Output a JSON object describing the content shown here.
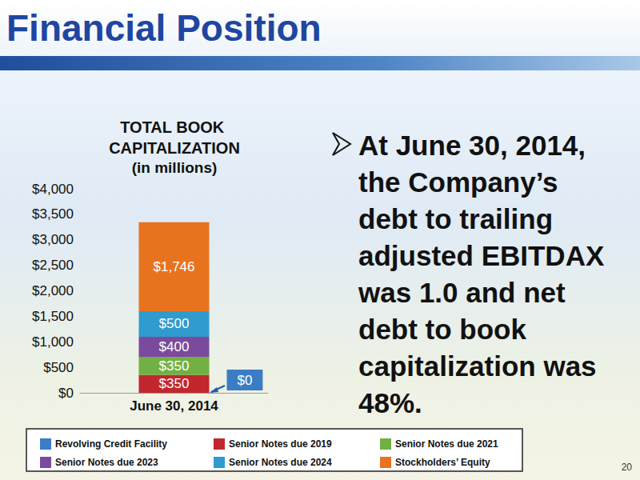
{
  "chart_data": {
    "type": "bar",
    "page_title": "Financial Position",
    "title": "TOTAL BOOK CAPITALIZATION",
    "subtitle": "(in millions)",
    "annotation": [
      "At June 30, 2014,",
      "the Company’s",
      "debt to trailing",
      "adjusted EBITDAX",
      "was 1.0 and net",
      "debt to book",
      "capitalization was",
      "48%."
    ],
    "page_number": "20",
    "categories": [
      "June 30, 2014"
    ],
    "stacked": true,
    "data_labels": true,
    "grid": false,
    "legend": "bottom",
    "ylim": [
      0,
      4000
    ],
    "yticks": [
      {
        "value": 0,
        "label": "$0"
      },
      {
        "value": 500,
        "label": "$500"
      },
      {
        "value": 1000,
        "label": "$1,000"
      },
      {
        "value": 1500,
        "label": "$1,500"
      },
      {
        "value": 2000,
        "label": "$2,000"
      },
      {
        "value": 2500,
        "label": "$2,500"
      },
      {
        "value": 3000,
        "label": "$3,000"
      },
      {
        "value": 3500,
        "label": "$3,500"
      },
      {
        "value": 4000,
        "label": "$4,000"
      }
    ],
    "series": [
      {
        "name": "Revolving Credit Facility",
        "color": "#3b7dc4",
        "values": [
          0
        ],
        "value_labels": [
          "$0"
        ]
      },
      {
        "name": "Senior Notes due 2019",
        "color": "#c1272d",
        "values": [
          350
        ],
        "value_labels": [
          "$350"
        ]
      },
      {
        "name": "Senior Notes due 2021",
        "color": "#72b043",
        "values": [
          350
        ],
        "value_labels": [
          "$350"
        ]
      },
      {
        "name": "Senior Notes due 2023",
        "color": "#7a4b9c",
        "values": [
          400
        ],
        "value_labels": [
          "$400"
        ]
      },
      {
        "name": "Senior Notes due 2024",
        "color": "#2f9bcf",
        "values": [
          500
        ],
        "value_labels": [
          "$500"
        ]
      },
      {
        "name": "Stockholders’ Equity",
        "color": "#e8731f",
        "values": [
          1746
        ],
        "value_labels": [
          "$1,746"
        ]
      }
    ]
  }
}
